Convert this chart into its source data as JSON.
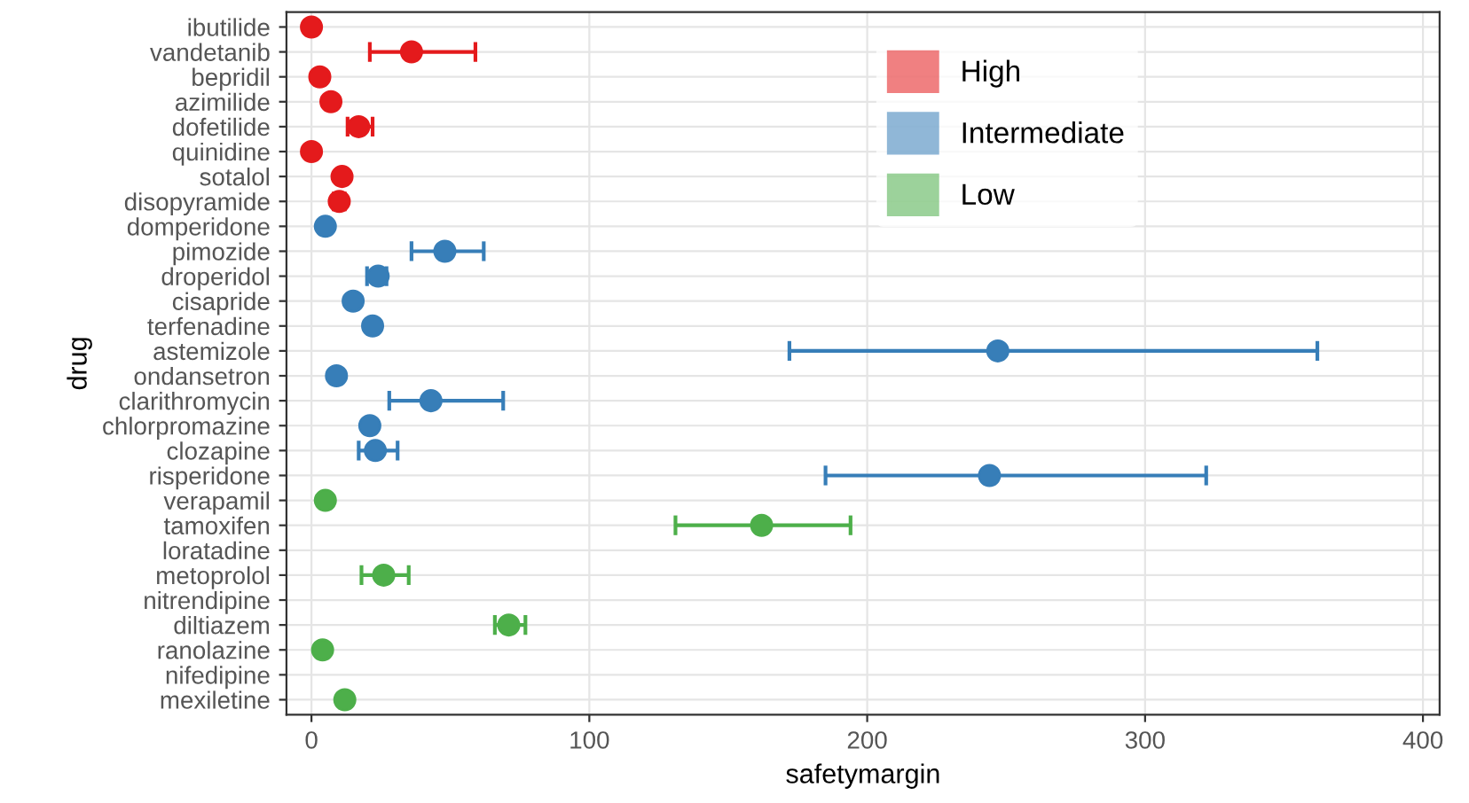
{
  "chart_data": {
    "type": "scatter",
    "orientation": "horizontal",
    "xlabel": "safetymargin",
    "ylabel": "drug",
    "categories": [
      "ibutilide",
      "vandetanib",
      "bepridil",
      "azimilide",
      "dofetilide",
      "quinidine",
      "sotalol",
      "disopyramide",
      "domperidone",
      "pimozide",
      "droperidol",
      "cisapride",
      "terfenadine",
      "astemizole",
      "ondansetron",
      "clarithromycin",
      "chlorpromazine",
      "clozapine",
      "risperidone",
      "verapamil",
      "tamoxifen",
      "loratadine",
      "metoprolol",
      "nitrendipine",
      "diltiazem",
      "ranolazine",
      "nifedipine",
      "mexiletine"
    ],
    "series": [
      {
        "name": "High",
        "color": "#e41a1c",
        "values": [
          0,
          36,
          3,
          7,
          17,
          0,
          11,
          10,
          null,
          null,
          null,
          null,
          null,
          null,
          null,
          null,
          null,
          null,
          null,
          null,
          null,
          null,
          null,
          null,
          null,
          null,
          null,
          null
        ],
        "errors": [
          null,
          [
            21,
            59
          ],
          null,
          null,
          [
            13,
            22
          ],
          null,
          null,
          [
            8,
            12
          ],
          null,
          null,
          null,
          null,
          null,
          null,
          null,
          null,
          null,
          null,
          null,
          null,
          null,
          null,
          null,
          null,
          null,
          null,
          null,
          null
        ]
      },
      {
        "name": "Intermediate",
        "color": "#377eb8",
        "values": [
          null,
          null,
          null,
          null,
          null,
          null,
          null,
          null,
          5,
          48,
          24,
          15,
          22,
          247,
          9,
          43,
          21,
          23,
          244,
          null,
          null,
          null,
          null,
          null,
          null,
          null,
          null,
          null
        ],
        "errors": [
          null,
          null,
          null,
          null,
          null,
          null,
          null,
          null,
          null,
          [
            36,
            62
          ],
          [
            20,
            27
          ],
          null,
          null,
          [
            172,
            362
          ],
          null,
          [
            28,
            69
          ],
          null,
          [
            17,
            31
          ],
          [
            185,
            322
          ],
          null,
          null,
          null,
          null,
          null,
          null,
          null,
          null,
          null
        ]
      },
      {
        "name": "Low",
        "color": "#4daf4a",
        "values": [
          null,
          null,
          null,
          null,
          null,
          null,
          null,
          null,
          null,
          null,
          null,
          null,
          null,
          null,
          null,
          null,
          null,
          null,
          null,
          5,
          162,
          null,
          26,
          null,
          71,
          4,
          null,
          12
        ],
        "errors": [
          null,
          null,
          null,
          null,
          null,
          null,
          null,
          null,
          null,
          null,
          null,
          null,
          null,
          null,
          null,
          null,
          null,
          null,
          null,
          null,
          [
            131,
            194
          ],
          null,
          [
            18,
            35
          ],
          null,
          [
            66,
            77
          ],
          null,
          null,
          null
        ]
      }
    ],
    "xlim": [
      -9,
      406
    ],
    "xticks": [
      0,
      100,
      200,
      300,
      400
    ],
    "grid": true,
    "legend": "top right",
    "marker": "circle"
  }
}
